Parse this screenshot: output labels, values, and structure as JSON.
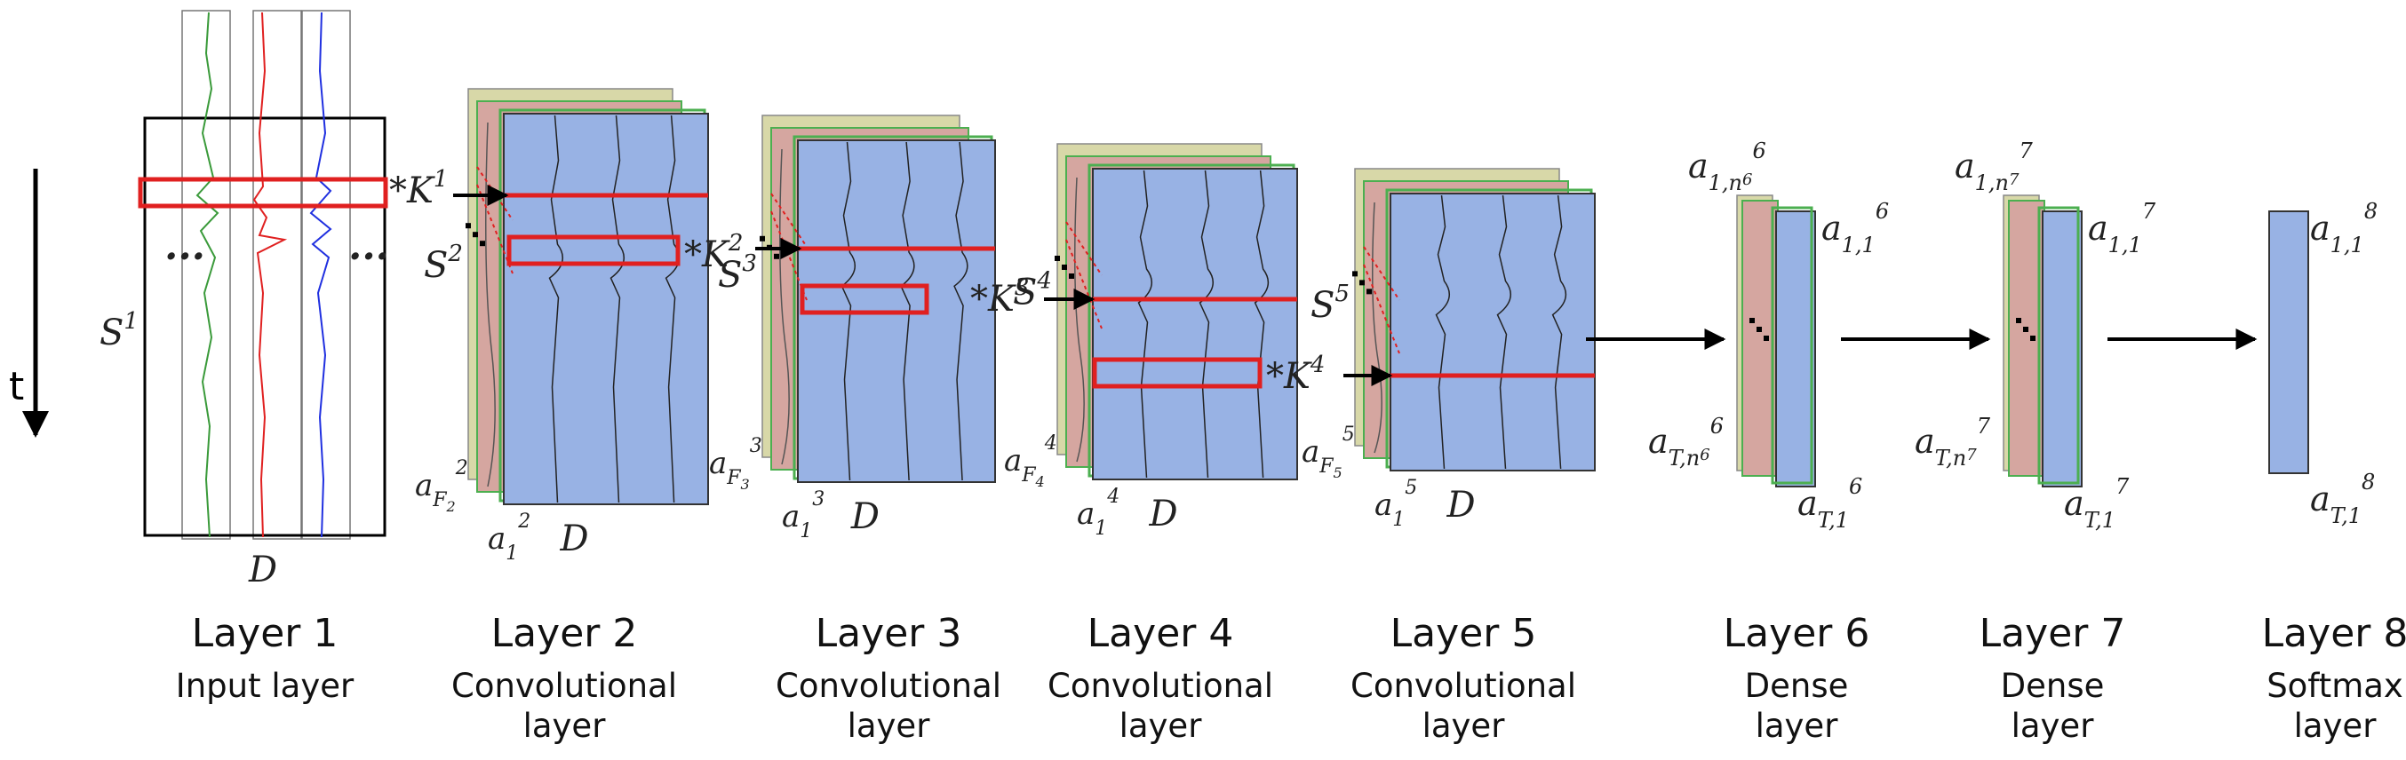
{
  "time_label": "t",
  "layers": [
    {
      "name": "Layer 1",
      "desc": [
        "Input layer"
      ]
    },
    {
      "name": "Layer 2",
      "desc": [
        "Convolutional",
        "layer"
      ]
    },
    {
      "name": "Layer 3",
      "desc": [
        "Convolutional",
        "layer"
      ]
    },
    {
      "name": "Layer 4",
      "desc": [
        "Convolutional",
        "layer"
      ]
    },
    {
      "name": "Layer 5",
      "desc": [
        "Convolutional",
        "layer"
      ]
    },
    {
      "name": "Layer 6",
      "desc": [
        "Dense",
        "layer"
      ]
    },
    {
      "name": "Layer 7",
      "desc": [
        "Dense",
        "layer"
      ]
    },
    {
      "name": "Layer 8",
      "desc": [
        "Softmax",
        "layer"
      ]
    }
  ],
  "input": {
    "S": "S",
    "S_sup": "1",
    "D": "D",
    "ellipsis": "..."
  },
  "conv_blocks": [
    {
      "K": "K",
      "K_sup": "1",
      "S": "S",
      "S_sup": "2",
      "aF_sub": "F",
      "aF_sup": "2",
      "aF_subsup": "2",
      "a1_sup": "2",
      "D": "D"
    },
    {
      "K": "K",
      "K_sup": "2",
      "S": "S",
      "S_sup": "3",
      "aF_sub": "F",
      "aF_sup": "3",
      "aF_subsup": "3",
      "a1_sup": "3",
      "D": "D"
    },
    {
      "K": "K",
      "K_sup": "3",
      "S": "S",
      "S_sup": "4",
      "aF_sub": "F",
      "aF_sup": "4",
      "aF_subsup": "4",
      "a1_sup": "4",
      "D": "D"
    },
    {
      "K": "K",
      "K_sup": "4",
      "S": "S",
      "S_sup": "5",
      "aF_sub": "F",
      "aF_sup": "5",
      "aF_subsup": "5",
      "a1_sup": "5",
      "D": "D"
    }
  ],
  "dense": [
    {
      "top_sub": "1,n",
      "top_subsup": "6",
      "top_sup": "6",
      "right_top_sub": "1,1",
      "right_top_sup": "6",
      "bot_sub": "T,n",
      "bot_subsup": "6",
      "bot_sup": "6",
      "right_bot_sub": "T,1",
      "right_bot_sup": "6"
    },
    {
      "top_sub": "1,n",
      "top_subsup": "7",
      "top_sup": "7",
      "right_top_sub": "1,1",
      "right_top_sup": "7",
      "bot_sub": "T,n",
      "bot_subsup": "7",
      "bot_sup": "7",
      "right_bot_sub": "T,1",
      "right_bot_sup": "7"
    }
  ],
  "softmax": {
    "top_sub": "1,1",
    "top_sup": "8",
    "bot_sub": "T,1",
    "bot_sup": "8"
  },
  "symbols": {
    "star": "*",
    "a": "a"
  },
  "colors": {
    "blue": "#98b2e4",
    "pink": "#d5a6a0",
    "beige": "#d8d8a8",
    "green_edge": "#4caf50",
    "red": "#e02020"
  }
}
